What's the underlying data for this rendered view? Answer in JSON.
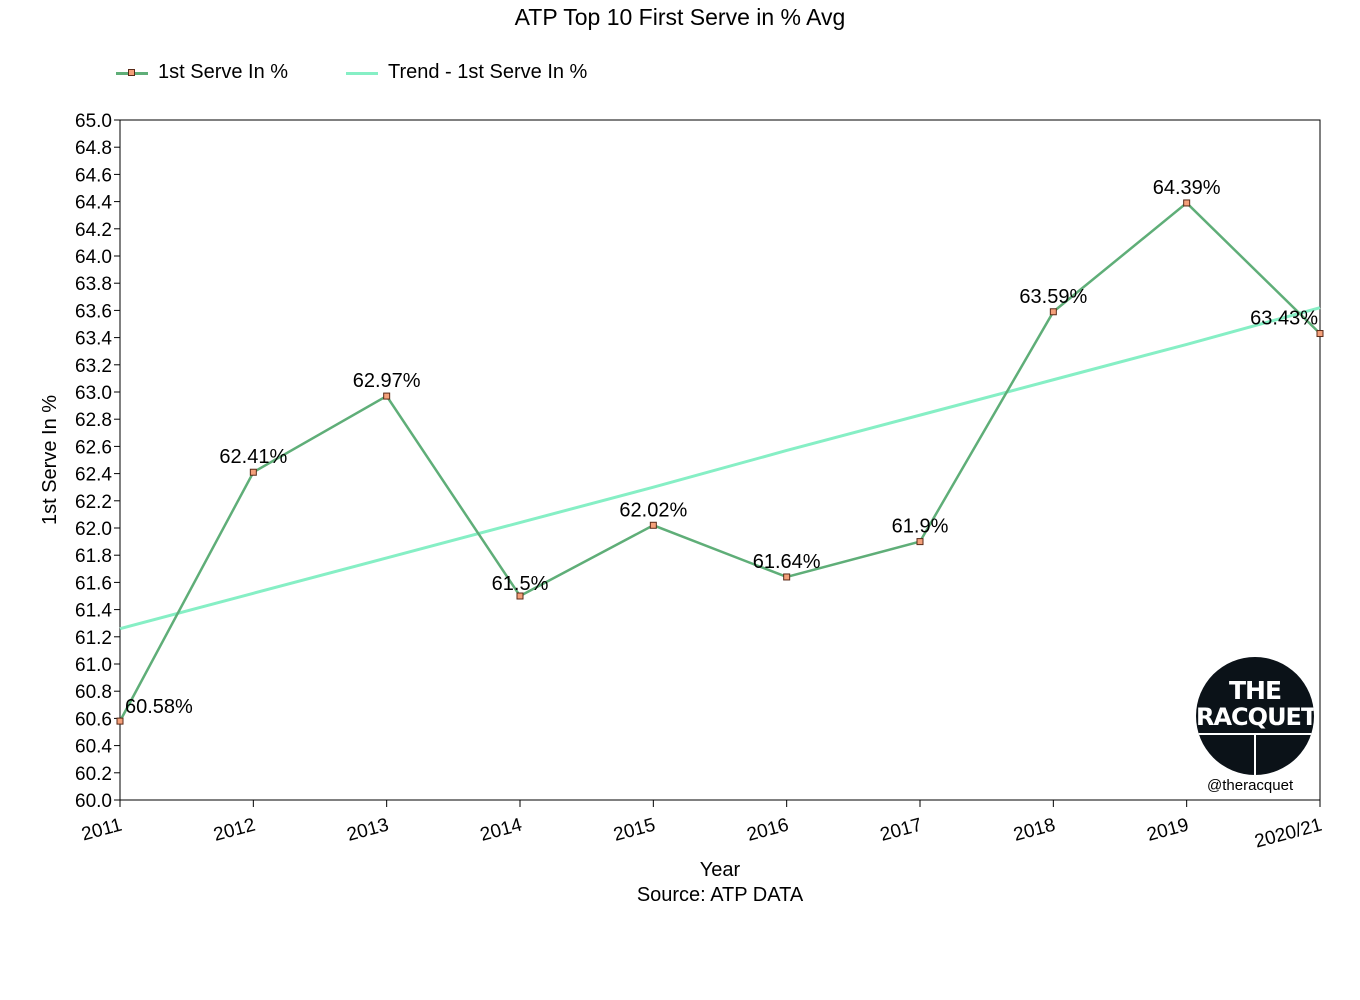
{
  "chart_data": {
    "type": "line",
    "title": "ATP Top 10 First Serve in % Avg",
    "xlabel": "Year",
    "source": "Source: ATP DATA",
    "ylabel": "1st Serve In %",
    "categories": [
      "2011",
      "2012",
      "2013",
      "2014",
      "2015",
      "2016",
      "2017",
      "2018",
      "2019",
      "2020/21"
    ],
    "ylim": [
      60.0,
      65.0
    ],
    "y_ticks": [
      "60.0",
      "60.2",
      "60.4",
      "60.6",
      "60.8",
      "61.0",
      "61.2",
      "61.4",
      "61.6",
      "61.8",
      "62.0",
      "62.2",
      "62.4",
      "62.6",
      "62.8",
      "63.0",
      "63.2",
      "63.4",
      "63.6",
      "63.8",
      "64.0",
      "64.2",
      "64.4",
      "64.6",
      "64.8",
      "65.0"
    ],
    "series": [
      {
        "name": "1st Serve In %",
        "color": "#5fae78",
        "marker_color": "#f4a07a",
        "values": [
          60.58,
          62.41,
          62.97,
          61.5,
          62.02,
          61.64,
          61.9,
          63.59,
          64.39,
          63.43
        ],
        "labels": [
          "60.58%",
          "62.41%",
          "62.97%",
          "61.5%",
          "62.02%",
          "61.64%",
          "61.9%",
          "63.59%",
          "64.39%",
          "63.43%"
        ]
      },
      {
        "name": "Trend - 1st Serve In %",
        "color": "#86efc5",
        "values": [
          61.26,
          61.52,
          61.78,
          62.04,
          62.3,
          62.57,
          62.83,
          63.09,
          63.35,
          63.62
        ]
      }
    ],
    "grid": false,
    "legend_position": "top-left"
  },
  "watermark": {
    "line1": "THE",
    "line2": "RACQUET",
    "handle": "@theracquet"
  }
}
